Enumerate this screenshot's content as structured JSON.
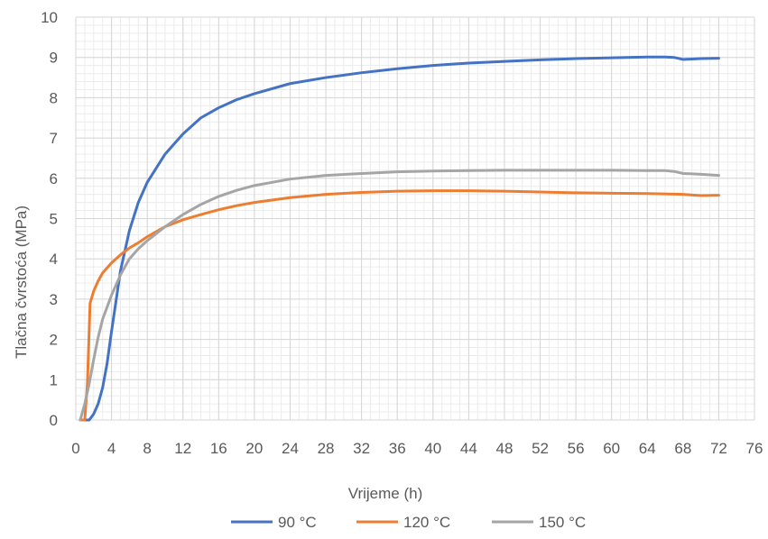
{
  "chart_data": {
    "type": "line",
    "title": "",
    "xlabel": "Vrijeme (h)",
    "ylabel": "Tlačna čvrstoća (MPa)",
    "xlim": [
      0,
      76
    ],
    "ylim": [
      0,
      10
    ],
    "x_ticks": [
      "0",
      "4",
      "8",
      "12",
      "16",
      "20",
      "24",
      "28",
      "32",
      "36",
      "40",
      "44",
      "48",
      "52",
      "56",
      "60",
      "64",
      "68",
      "72",
      "76"
    ],
    "y_ticks": [
      "0",
      "1",
      "2",
      "3",
      "4",
      "5",
      "6",
      "7",
      "8",
      "9",
      "10"
    ],
    "grid": "major and minor",
    "legend_position": "bottom",
    "series": [
      {
        "name": "90 °C",
        "color": "#4472C4",
        "x": [
          0.5,
          1.0,
          1.5,
          2.0,
          2.5,
          3.0,
          3.5,
          4.0,
          5.0,
          6.0,
          7.0,
          8.0,
          10.0,
          12.0,
          14.0,
          16.0,
          18.0,
          20.0,
          24.0,
          28.0,
          32.0,
          36.0,
          40.0,
          44.0,
          48.0,
          52.0,
          56.0,
          60.0,
          64.0,
          66.0,
          67.0,
          68.0,
          70.0,
          72.0
        ],
        "y": [
          0.0,
          0.0,
          0.0,
          0.15,
          0.4,
          0.8,
          1.4,
          2.2,
          3.7,
          4.7,
          5.4,
          5.9,
          6.6,
          7.1,
          7.5,
          7.75,
          7.95,
          8.1,
          8.35,
          8.5,
          8.62,
          8.72,
          8.8,
          8.86,
          8.9,
          8.94,
          8.97,
          8.99,
          9.01,
          9.01,
          9.0,
          8.95,
          8.97,
          8.98
        ]
      },
      {
        "name": "120 °C",
        "color": "#ED7D31",
        "x": [
          0.5,
          1.0,
          1.3,
          1.6,
          2.0,
          2.5,
          3.0,
          4.0,
          5.0,
          6.0,
          7.0,
          8.0,
          10.0,
          12.0,
          14.0,
          16.0,
          18.0,
          20.0,
          24.0,
          28.0,
          32.0,
          36.0,
          40.0,
          44.0,
          48.0,
          52.0,
          56.0,
          60.0,
          64.0,
          68.0,
          70.0,
          72.0
        ],
        "y": [
          0.0,
          0.0,
          0.9,
          2.9,
          3.2,
          3.45,
          3.65,
          3.9,
          4.1,
          4.27,
          4.4,
          4.55,
          4.8,
          4.97,
          5.1,
          5.22,
          5.32,
          5.4,
          5.52,
          5.6,
          5.65,
          5.68,
          5.69,
          5.69,
          5.68,
          5.66,
          5.64,
          5.63,
          5.62,
          5.6,
          5.57,
          5.58
        ]
      },
      {
        "name": "150 °C",
        "color": "#A5A5A5",
        "x": [
          0.5,
          1.0,
          1.5,
          2.0,
          2.5,
          3.0,
          4.0,
          5.0,
          6.0,
          7.0,
          8.0,
          10.0,
          12.0,
          14.0,
          16.0,
          18.0,
          20.0,
          24.0,
          28.0,
          32.0,
          36.0,
          40.0,
          44.0,
          48.0,
          52.0,
          56.0,
          60.0,
          64.0,
          66.0,
          67.0,
          68.0,
          70.0,
          72.0
        ],
        "y": [
          0.0,
          0.4,
          0.9,
          1.5,
          2.05,
          2.5,
          3.1,
          3.6,
          4.0,
          4.25,
          4.45,
          4.8,
          5.1,
          5.35,
          5.55,
          5.7,
          5.82,
          5.98,
          6.07,
          6.12,
          6.16,
          6.18,
          6.19,
          6.2,
          6.2,
          6.2,
          6.2,
          6.19,
          6.19,
          6.17,
          6.12,
          6.1,
          6.07
        ]
      }
    ]
  }
}
